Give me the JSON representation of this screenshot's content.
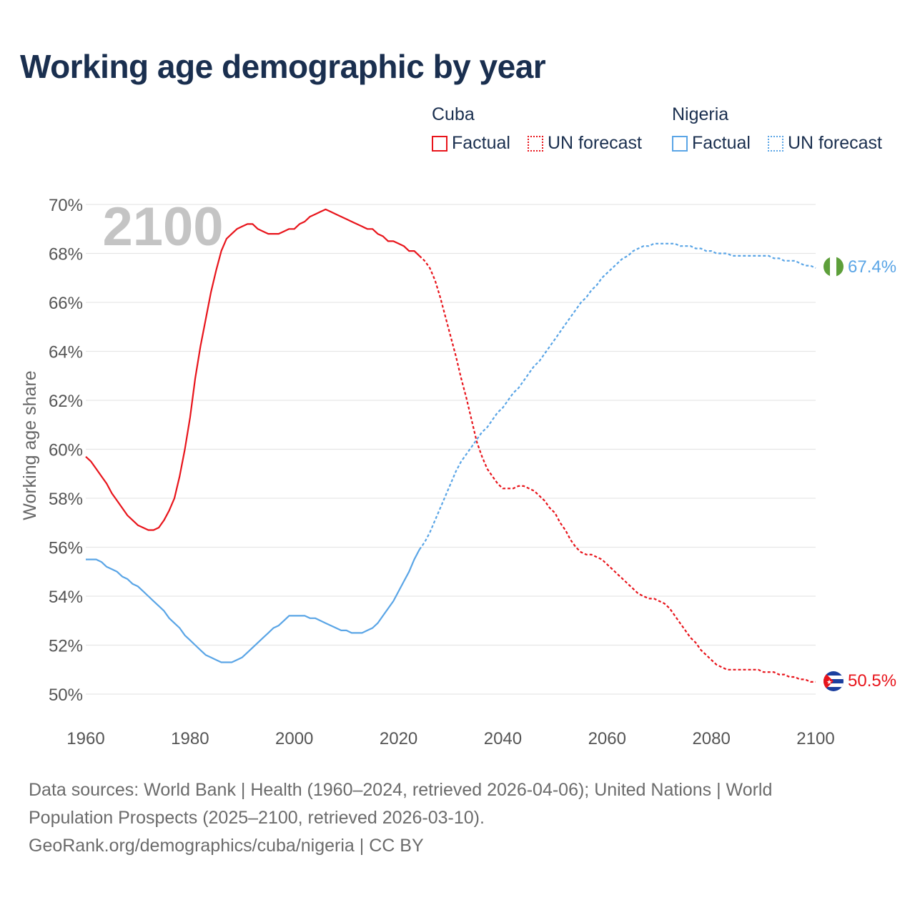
{
  "title": "Working age demographic by year",
  "legend": {
    "groups": [
      {
        "name": "Cuba",
        "factual": "Factual",
        "forecast": "UN forecast"
      },
      {
        "name": "Nigeria",
        "factual": "Factual",
        "forecast": "UN forecast"
      }
    ]
  },
  "year_watermark": "2100",
  "footer": {
    "line1": "Data sources: World Bank | Health (1960–2024, retrieved 2026-04-06); United Nations | World",
    "line2": "Population Prospects (2025–2100, retrieved 2026-03-10).",
    "line3": "GeoRank.org/demographics/cuba/nigeria | CC BY"
  },
  "colors": {
    "cuba": "#e8141b",
    "nigeria": "#5aa5e6",
    "title": "#1a2f4f",
    "grid": "#e6e6e6",
    "axis_text": "#555555",
    "watermark": "#c4c4c4"
  },
  "chart_data": {
    "type": "line",
    "title": "Working age demographic by year",
    "xlabel": "",
    "ylabel": "Working age share",
    "xlim": [
      1960,
      2100
    ],
    "ylim": [
      50,
      70
    ],
    "x_ticks": [
      1960,
      1980,
      2000,
      2020,
      2040,
      2060,
      2080,
      2100
    ],
    "y_ticks": [
      50,
      52,
      54,
      56,
      58,
      60,
      62,
      64,
      66,
      68,
      70
    ],
    "x_tick_labels": [
      "1960",
      "1980",
      "2000",
      "2020",
      "2040",
      "2060",
      "2080",
      "2100"
    ],
    "y_tick_labels": [
      "50%",
      "52%",
      "54%",
      "56%",
      "58%",
      "60%",
      "62%",
      "64%",
      "66%",
      "68%",
      "70%"
    ],
    "factual_end": 2024,
    "series": [
      {
        "name": "Cuba",
        "end_label": "50.5%",
        "points": [
          [
            1960,
            59.7
          ],
          [
            1961,
            59.5
          ],
          [
            1962,
            59.2
          ],
          [
            1963,
            58.9
          ],
          [
            1964,
            58.6
          ],
          [
            1965,
            58.2
          ],
          [
            1966,
            57.9
          ],
          [
            1967,
            57.6
          ],
          [
            1968,
            57.3
          ],
          [
            1969,
            57.1
          ],
          [
            1970,
            56.9
          ],
          [
            1971,
            56.8
          ],
          [
            1972,
            56.7
          ],
          [
            1973,
            56.7
          ],
          [
            1974,
            56.8
          ],
          [
            1975,
            57.1
          ],
          [
            1976,
            57.5
          ],
          [
            1977,
            58.0
          ],
          [
            1978,
            58.9
          ],
          [
            1979,
            60.0
          ],
          [
            1980,
            61.3
          ],
          [
            1981,
            62.9
          ],
          [
            1982,
            64.2
          ],
          [
            1983,
            65.3
          ],
          [
            1984,
            66.4
          ],
          [
            1985,
            67.3
          ],
          [
            1986,
            68.1
          ],
          [
            1987,
            68.6
          ],
          [
            1988,
            68.8
          ],
          [
            1989,
            69.0
          ],
          [
            1990,
            69.1
          ],
          [
            1991,
            69.2
          ],
          [
            1992,
            69.2
          ],
          [
            1993,
            69.0
          ],
          [
            1994,
            68.9
          ],
          [
            1995,
            68.8
          ],
          [
            1996,
            68.8
          ],
          [
            1997,
            68.8
          ],
          [
            1998,
            68.9
          ],
          [
            1999,
            69.0
          ],
          [
            2000,
            69.0
          ],
          [
            2001,
            69.2
          ],
          [
            2002,
            69.3
          ],
          [
            2003,
            69.5
          ],
          [
            2004,
            69.6
          ],
          [
            2005,
            69.7
          ],
          [
            2006,
            69.8
          ],
          [
            2007,
            69.7
          ],
          [
            2008,
            69.6
          ],
          [
            2009,
            69.5
          ],
          [
            2010,
            69.4
          ],
          [
            2011,
            69.3
          ],
          [
            2012,
            69.2
          ],
          [
            2013,
            69.1
          ],
          [
            2014,
            69.0
          ],
          [
            2015,
            69.0
          ],
          [
            2016,
            68.8
          ],
          [
            2017,
            68.7
          ],
          [
            2018,
            68.5
          ],
          [
            2019,
            68.5
          ],
          [
            2020,
            68.4
          ],
          [
            2021,
            68.3
          ],
          [
            2022,
            68.1
          ],
          [
            2023,
            68.1
          ],
          [
            2024,
            67.9
          ],
          [
            2025,
            67.7
          ],
          [
            2026,
            67.4
          ],
          [
            2027,
            66.9
          ],
          [
            2028,
            66.2
          ],
          [
            2029,
            65.4
          ],
          [
            2030,
            64.6
          ],
          [
            2031,
            63.8
          ],
          [
            2032,
            62.9
          ],
          [
            2033,
            62.1
          ],
          [
            2034,
            61.2
          ],
          [
            2035,
            60.3
          ],
          [
            2036,
            59.7
          ],
          [
            2037,
            59.2
          ],
          [
            2038,
            58.9
          ],
          [
            2039,
            58.6
          ],
          [
            2040,
            58.4
          ],
          [
            2041,
            58.4
          ],
          [
            2042,
            58.4
          ],
          [
            2043,
            58.5
          ],
          [
            2044,
            58.5
          ],
          [
            2045,
            58.4
          ],
          [
            2046,
            58.3
          ],
          [
            2047,
            58.1
          ],
          [
            2048,
            57.9
          ],
          [
            2049,
            57.6
          ],
          [
            2050,
            57.4
          ],
          [
            2051,
            57.0
          ],
          [
            2052,
            56.7
          ],
          [
            2053,
            56.3
          ],
          [
            2054,
            56.0
          ],
          [
            2055,
            55.8
          ],
          [
            2056,
            55.7
          ],
          [
            2057,
            55.7
          ],
          [
            2058,
            55.6
          ],
          [
            2059,
            55.5
          ],
          [
            2060,
            55.3
          ],
          [
            2061,
            55.1
          ],
          [
            2062,
            54.9
          ],
          [
            2063,
            54.7
          ],
          [
            2064,
            54.5
          ],
          [
            2065,
            54.3
          ],
          [
            2066,
            54.1
          ],
          [
            2067,
            54.0
          ],
          [
            2068,
            53.9
          ],
          [
            2069,
            53.9
          ],
          [
            2070,
            53.8
          ],
          [
            2071,
            53.7
          ],
          [
            2072,
            53.5
          ],
          [
            2073,
            53.2
          ],
          [
            2074,
            52.9
          ],
          [
            2075,
            52.6
          ],
          [
            2076,
            52.3
          ],
          [
            2077,
            52.1
          ],
          [
            2078,
            51.8
          ],
          [
            2079,
            51.6
          ],
          [
            2080,
            51.4
          ],
          [
            2081,
            51.2
          ],
          [
            2082,
            51.1
          ],
          [
            2083,
            51.0
          ],
          [
            2084,
            51.0
          ],
          [
            2085,
            51.0
          ],
          [
            2086,
            51.0
          ],
          [
            2087,
            51.0
          ],
          [
            2088,
            51.0
          ],
          [
            2089,
            51.0
          ],
          [
            2090,
            50.9
          ],
          [
            2091,
            50.9
          ],
          [
            2092,
            50.9
          ],
          [
            2093,
            50.8
          ],
          [
            2094,
            50.8
          ],
          [
            2095,
            50.7
          ],
          [
            2096,
            50.7
          ],
          [
            2097,
            50.6
          ],
          [
            2098,
            50.6
          ],
          [
            2099,
            50.5
          ],
          [
            2100,
            50.5
          ]
        ]
      },
      {
        "name": "Nigeria",
        "end_label": "67.4%",
        "points": [
          [
            1960,
            55.5
          ],
          [
            1961,
            55.5
          ],
          [
            1962,
            55.5
          ],
          [
            1963,
            55.4
          ],
          [
            1964,
            55.2
          ],
          [
            1965,
            55.1
          ],
          [
            1966,
            55.0
          ],
          [
            1967,
            54.8
          ],
          [
            1968,
            54.7
          ],
          [
            1969,
            54.5
          ],
          [
            1970,
            54.4
          ],
          [
            1971,
            54.2
          ],
          [
            1972,
            54.0
          ],
          [
            1973,
            53.8
          ],
          [
            1974,
            53.6
          ],
          [
            1975,
            53.4
          ],
          [
            1976,
            53.1
          ],
          [
            1977,
            52.9
          ],
          [
            1978,
            52.7
          ],
          [
            1979,
            52.4
          ],
          [
            1980,
            52.2
          ],
          [
            1981,
            52.0
          ],
          [
            1982,
            51.8
          ],
          [
            1983,
            51.6
          ],
          [
            1984,
            51.5
          ],
          [
            1985,
            51.4
          ],
          [
            1986,
            51.3
          ],
          [
            1987,
            51.3
          ],
          [
            1988,
            51.3
          ],
          [
            1989,
            51.4
          ],
          [
            1990,
            51.5
          ],
          [
            1991,
            51.7
          ],
          [
            1992,
            51.9
          ],
          [
            1993,
            52.1
          ],
          [
            1994,
            52.3
          ],
          [
            1995,
            52.5
          ],
          [
            1996,
            52.7
          ],
          [
            1997,
            52.8
          ],
          [
            1998,
            53.0
          ],
          [
            1999,
            53.2
          ],
          [
            2000,
            53.2
          ],
          [
            2001,
            53.2
          ],
          [
            2002,
            53.2
          ],
          [
            2003,
            53.1
          ],
          [
            2004,
            53.1
          ],
          [
            2005,
            53.0
          ],
          [
            2006,
            52.9
          ],
          [
            2007,
            52.8
          ],
          [
            2008,
            52.7
          ],
          [
            2009,
            52.6
          ],
          [
            2010,
            52.6
          ],
          [
            2011,
            52.5
          ],
          [
            2012,
            52.5
          ],
          [
            2013,
            52.5
          ],
          [
            2014,
            52.6
          ],
          [
            2015,
            52.7
          ],
          [
            2016,
            52.9
          ],
          [
            2017,
            53.2
          ],
          [
            2018,
            53.5
          ],
          [
            2019,
            53.8
          ],
          [
            2020,
            54.2
          ],
          [
            2021,
            54.6
          ],
          [
            2022,
            55.0
          ],
          [
            2023,
            55.5
          ],
          [
            2024,
            55.9
          ],
          [
            2025,
            56.2
          ],
          [
            2026,
            56.6
          ],
          [
            2027,
            57.1
          ],
          [
            2028,
            57.6
          ],
          [
            2029,
            58.1
          ],
          [
            2030,
            58.6
          ],
          [
            2031,
            59.1
          ],
          [
            2032,
            59.5
          ],
          [
            2033,
            59.8
          ],
          [
            2034,
            60.1
          ],
          [
            2035,
            60.4
          ],
          [
            2036,
            60.7
          ],
          [
            2037,
            60.9
          ],
          [
            2038,
            61.2
          ],
          [
            2039,
            61.5
          ],
          [
            2040,
            61.7
          ],
          [
            2041,
            62.0
          ],
          [
            2042,
            62.3
          ],
          [
            2043,
            62.5
          ],
          [
            2044,
            62.8
          ],
          [
            2045,
            63.1
          ],
          [
            2046,
            63.4
          ],
          [
            2047,
            63.6
          ],
          [
            2048,
            63.9
          ],
          [
            2049,
            64.2
          ],
          [
            2050,
            64.5
          ],
          [
            2051,
            64.8
          ],
          [
            2052,
            65.1
          ],
          [
            2053,
            65.4
          ],
          [
            2054,
            65.7
          ],
          [
            2055,
            66.0
          ],
          [
            2056,
            66.2
          ],
          [
            2057,
            66.5
          ],
          [
            2058,
            66.7
          ],
          [
            2059,
            67.0
          ],
          [
            2060,
            67.2
          ],
          [
            2061,
            67.4
          ],
          [
            2062,
            67.6
          ],
          [
            2063,
            67.8
          ],
          [
            2064,
            67.9
          ],
          [
            2065,
            68.1
          ],
          [
            2066,
            68.2
          ],
          [
            2067,
            68.3
          ],
          [
            2068,
            68.3
          ],
          [
            2069,
            68.4
          ],
          [
            2070,
            68.4
          ],
          [
            2071,
            68.4
          ],
          [
            2072,
            68.4
          ],
          [
            2073,
            68.4
          ],
          [
            2074,
            68.3
          ],
          [
            2075,
            68.3
          ],
          [
            2076,
            68.3
          ],
          [
            2077,
            68.2
          ],
          [
            2078,
            68.2
          ],
          [
            2079,
            68.1
          ],
          [
            2080,
            68.1
          ],
          [
            2081,
            68.0
          ],
          [
            2082,
            68.0
          ],
          [
            2083,
            68.0
          ],
          [
            2084,
            67.9
          ],
          [
            2085,
            67.9
          ],
          [
            2086,
            67.9
          ],
          [
            2087,
            67.9
          ],
          [
            2088,
            67.9
          ],
          [
            2089,
            67.9
          ],
          [
            2090,
            67.9
          ],
          [
            2091,
            67.9
          ],
          [
            2092,
            67.8
          ],
          [
            2093,
            67.8
          ],
          [
            2094,
            67.7
          ],
          [
            2095,
            67.7
          ],
          [
            2096,
            67.7
          ],
          [
            2097,
            67.6
          ],
          [
            2098,
            67.5
          ],
          [
            2099,
            67.5
          ],
          [
            2100,
            67.4
          ]
        ]
      }
    ]
  }
}
